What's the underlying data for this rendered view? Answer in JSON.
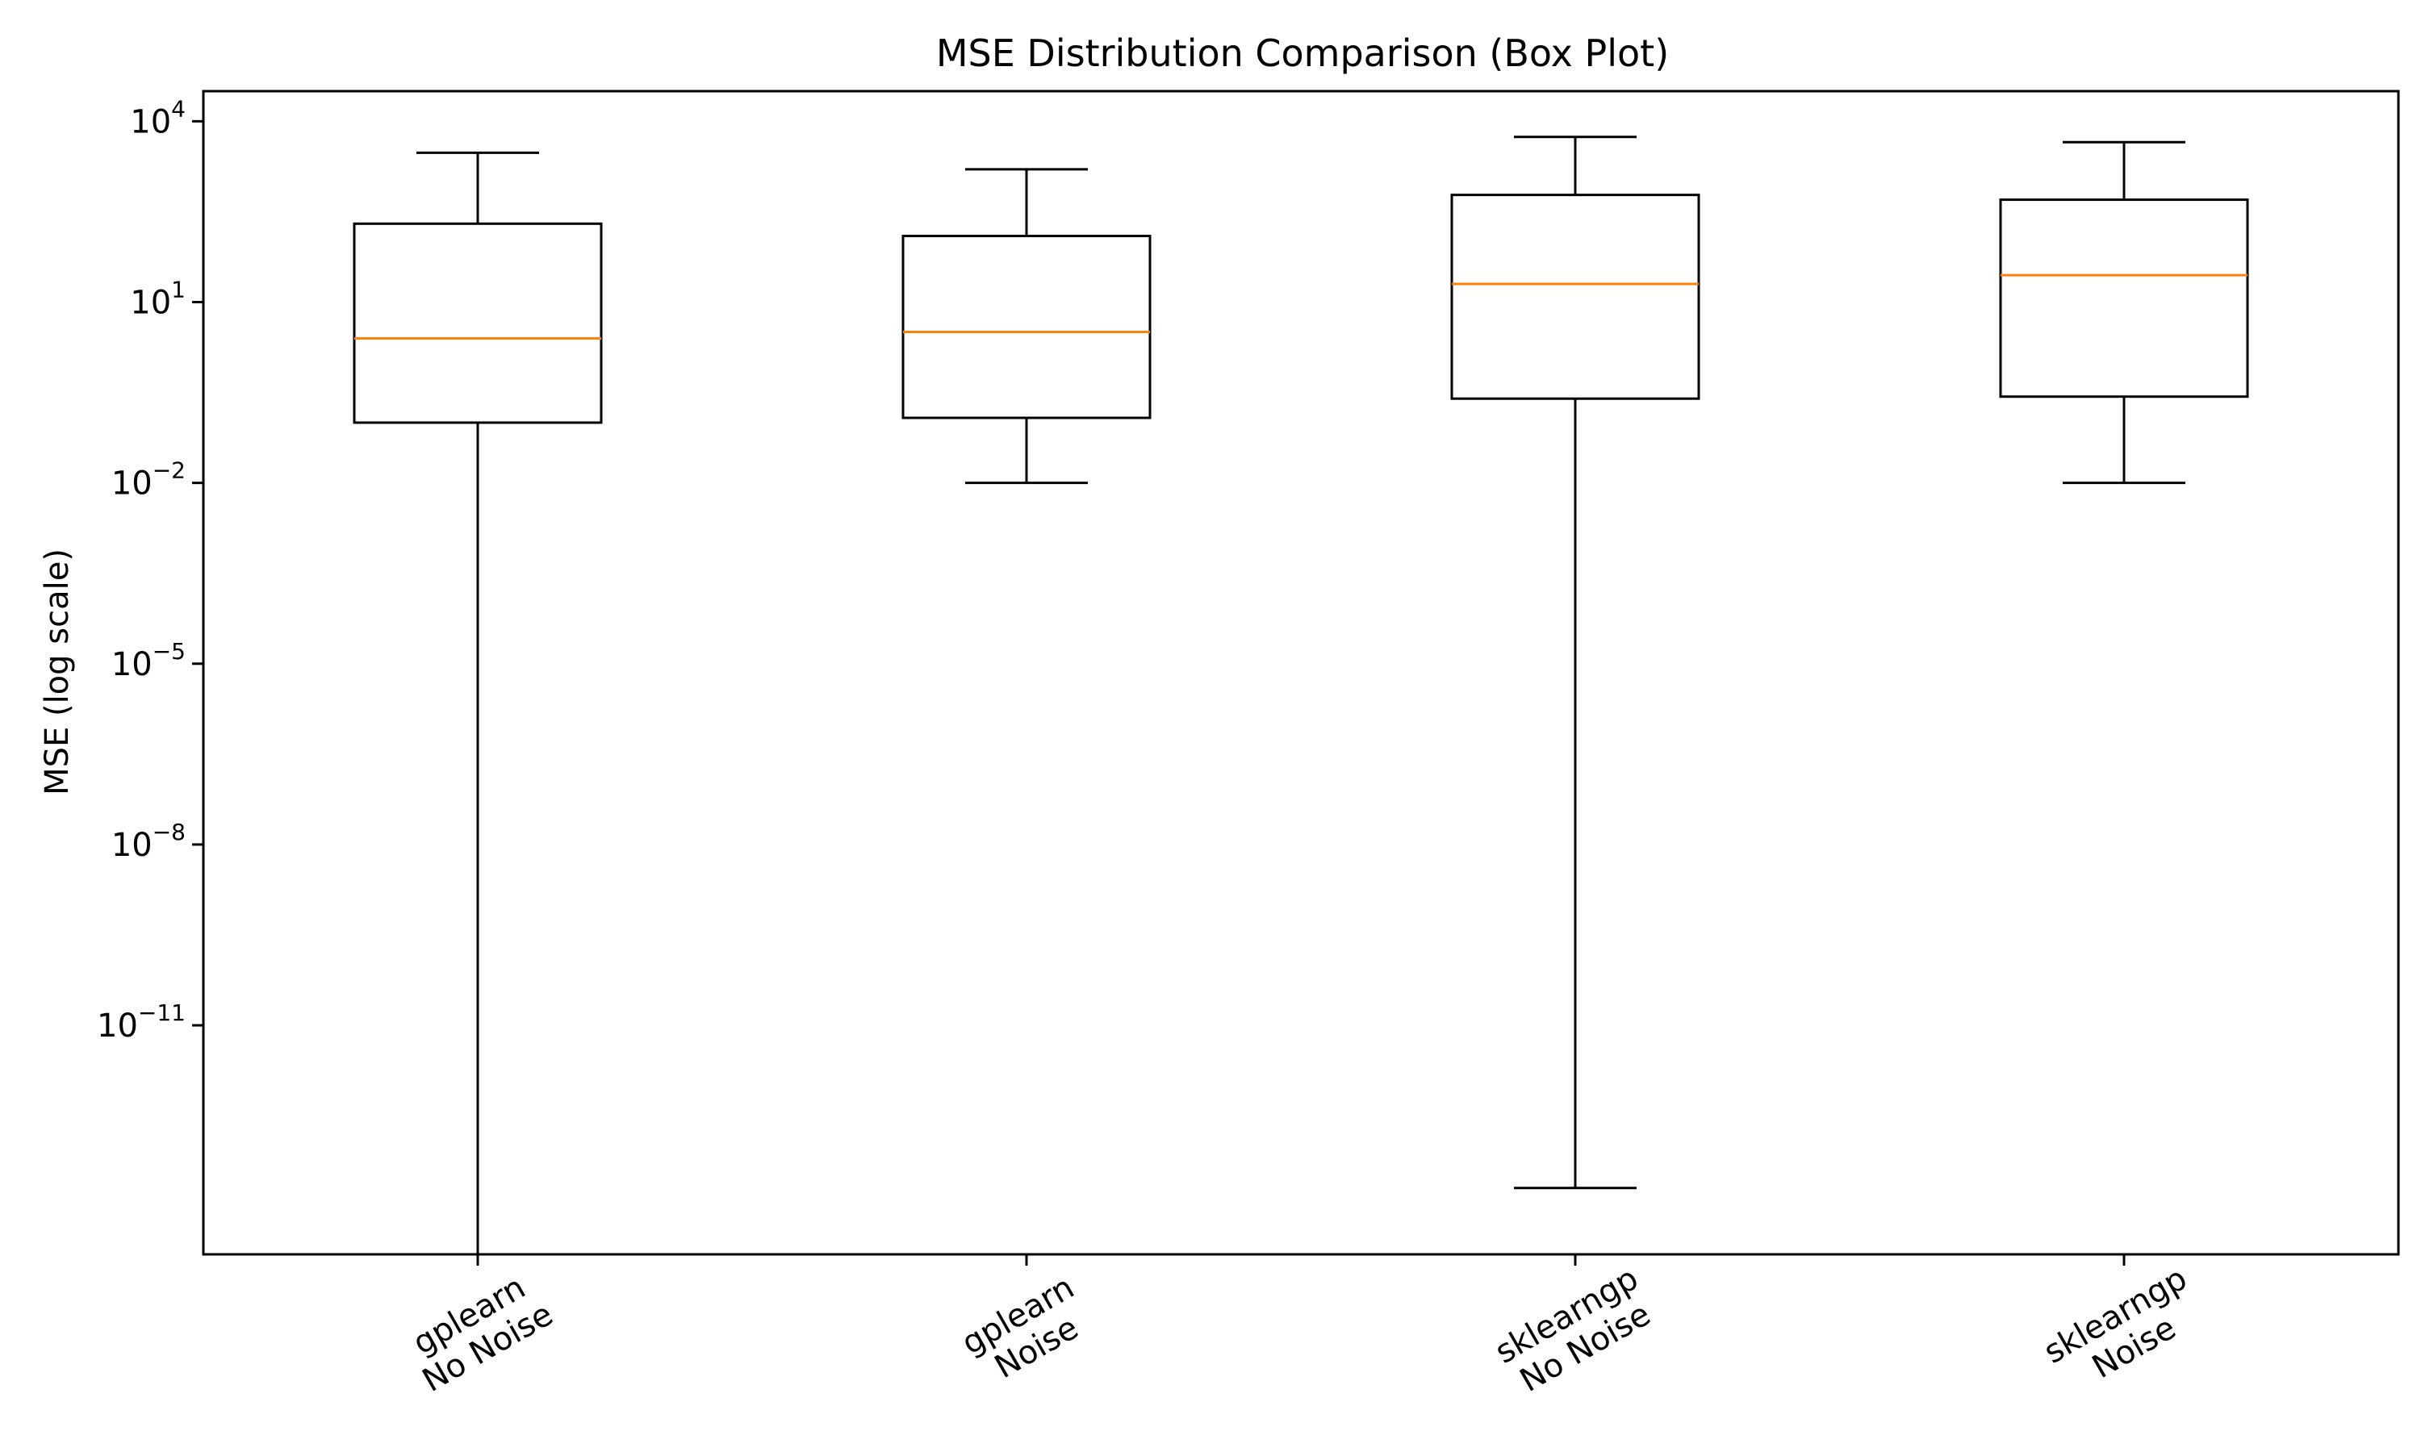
{
  "chart_data": {
    "type": "box",
    "title": "MSE Distribution Comparison (Box Plot)",
    "xlabel": "",
    "ylabel": "MSE (log scale)",
    "yscale": "log",
    "ylim_log10": [
      -14.8,
      4.5
    ],
    "yticks": [
      {
        "exp": 4,
        "base": "10",
        "sup": "4"
      },
      {
        "exp": 1,
        "base": "10",
        "sup": "1"
      },
      {
        "exp": -2,
        "base": "10",
        "sup": "−2"
      },
      {
        "exp": -5,
        "base": "10",
        "sup": "−5"
      },
      {
        "exp": -8,
        "base": "10",
        "sup": "−8"
      },
      {
        "exp": -11,
        "base": "10",
        "sup": "−11"
      }
    ],
    "categories": [
      {
        "line1": "gplearn",
        "line2": "No Noise"
      },
      {
        "line1": "gplearn",
        "line2": "Noise"
      },
      {
        "line1": "sklearngp",
        "line2": "No Noise"
      },
      {
        "line1": "sklearngp",
        "line2": "Noise"
      }
    ],
    "boxes": [
      {
        "whisker_low": 1e-15,
        "q1": 0.1,
        "median": 2.5,
        "q3": 200,
        "whisker_high": 3000
      },
      {
        "whisker_low": 0.01,
        "q1": 0.12,
        "median": 3.2,
        "q3": 125,
        "whisker_high": 1600
      },
      {
        "whisker_low": 2e-14,
        "q1": 0.25,
        "median": 20,
        "q3": 600,
        "whisker_high": 5500
      },
      {
        "whisker_low": 0.01,
        "q1": 0.27,
        "median": 28,
        "q3": 500,
        "whisker_high": 4500
      }
    ],
    "colors": {
      "box": "#000000",
      "median": "#ff7f0e",
      "background": "#ffffff"
    },
    "grid": false
  }
}
